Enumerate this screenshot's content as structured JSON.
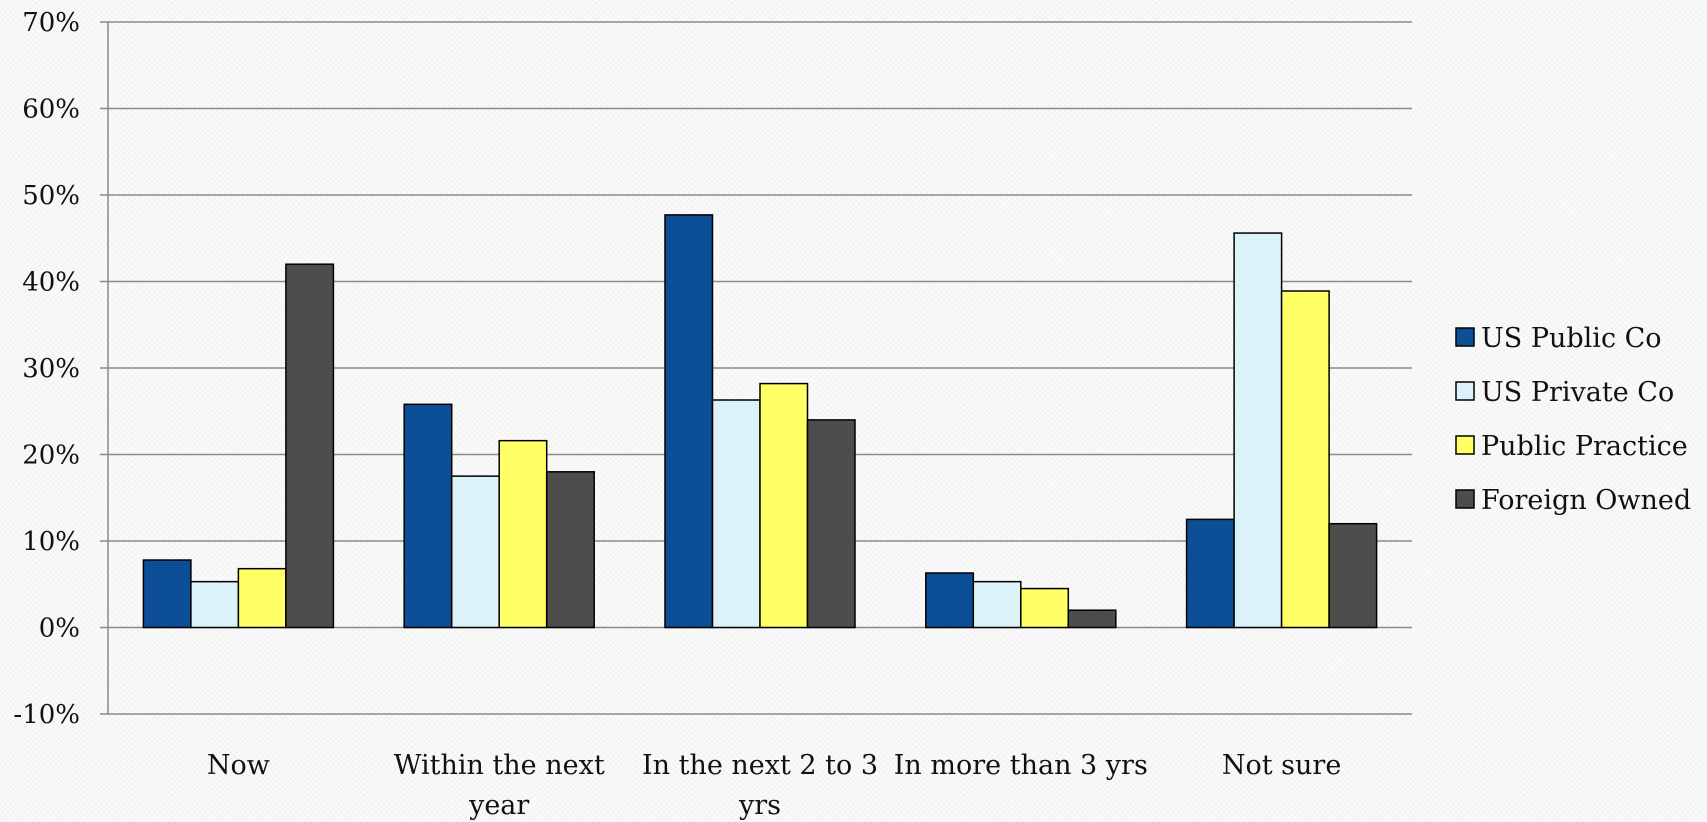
{
  "chart_data": {
    "type": "bar",
    "categories": [
      "Now",
      "Within the next year",
      "In the next 2 to 3 yrs",
      "In more than 3 yrs",
      "Not sure"
    ],
    "category_lines": [
      [
        "Now"
      ],
      [
        "Within the next",
        "year"
      ],
      [
        "In the next 2 to 3",
        "yrs"
      ],
      [
        "In more than 3 yrs"
      ],
      [
        "Not sure"
      ]
    ],
    "series": [
      {
        "name": "US Public Co",
        "color": "#0d4f96",
        "values": [
          7.8,
          25.8,
          47.7,
          6.3,
          12.5
        ]
      },
      {
        "name": "US Private Co",
        "color": "#dbf3f8",
        "values": [
          5.3,
          17.5,
          26.3,
          5.3,
          45.6
        ]
      },
      {
        "name": "Public Practice",
        "color": "#ffff66",
        "values": [
          6.8,
          21.6,
          28.2,
          4.5,
          38.9
        ]
      },
      {
        "name": "Foreign Owned",
        "color": "#4d4d4d",
        "values": [
          42.0,
          18.0,
          24.0,
          2.0,
          12.0
        ]
      }
    ],
    "title": "",
    "xlabel": "",
    "ylabel": "",
    "ylim": [
      -10,
      70
    ],
    "yticks": [
      -10,
      0,
      10,
      20,
      30,
      40,
      50,
      60,
      70
    ],
    "ytick_labels": [
      "-10%",
      "0%",
      "10%",
      "20%",
      "30%",
      "40%",
      "50%",
      "60%",
      "70%"
    ],
    "grid": true,
    "legend_position": "right"
  }
}
